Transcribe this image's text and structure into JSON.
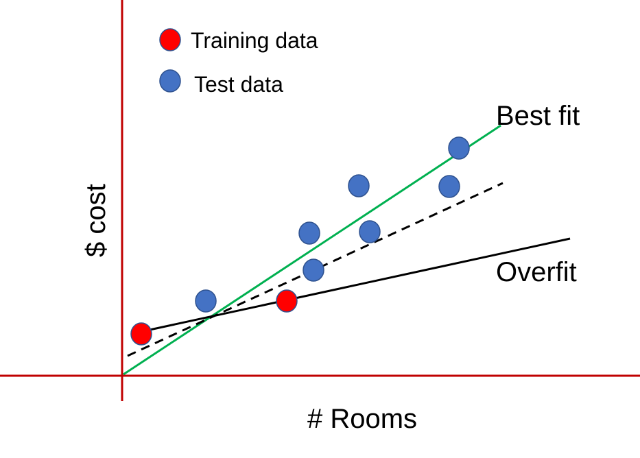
{
  "legend": {
    "items": [
      {
        "label": "Training data",
        "color": "#ff0000"
      },
      {
        "label": "Test data",
        "color": "#4472c4"
      }
    ]
  },
  "axes": {
    "x_label": "# Rooms",
    "y_label": "$ cost",
    "color": "#c00000"
  },
  "lines": {
    "best_fit": {
      "label": "Best fit",
      "color": "#00b050",
      "style": "solid"
    },
    "overfit": {
      "label": "Overfit",
      "color": "#000000",
      "style": "solid"
    },
    "dashed": {
      "label": "",
      "color": "#000000",
      "style": "dashed"
    }
  },
  "points": {
    "training_color": "#ff0000",
    "test_color": "#4472c4",
    "outline_color": "#2f4f8f"
  }
}
